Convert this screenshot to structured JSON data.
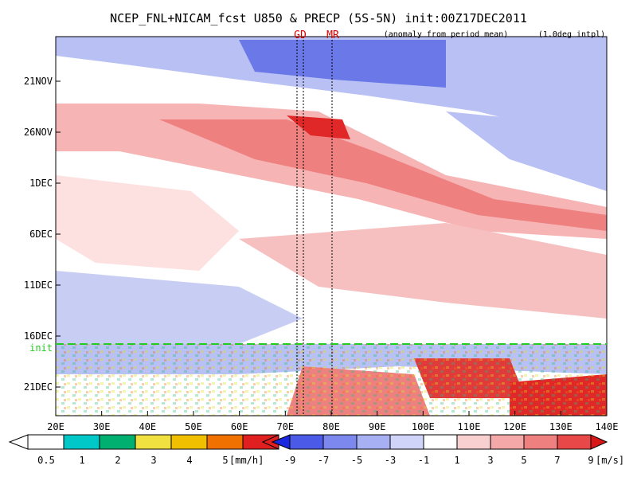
{
  "header": {
    "title": "NCEP_FNL+NICAM_fcst U850 & PRECP (5S-5N) init:00Z17DEC2011",
    "note_left": "(anomaly from period mean)",
    "note_right": "(1.0deg intpl)"
  },
  "markers": [
    "GD",
    "MR"
  ],
  "init_label": "init",
  "x_axis": [
    "20E",
    "30E",
    "40E",
    "50E",
    "60E",
    "70E",
    "80E",
    "90E",
    "100E",
    "110E",
    "120E",
    "130E",
    "140E"
  ],
  "y_axis": [
    "21NOV",
    "26NOV",
    "1DEC",
    "6DEC",
    "11DEC",
    "16DEC",
    "21DEC"
  ],
  "precip_scale": {
    "ticks": [
      0.5,
      1,
      2,
      3,
      4,
      5
    ],
    "unit": "[mm/h]"
  },
  "wind_scale": {
    "ticks": [
      -9,
      -7,
      -5,
      -3,
      -1,
      1,
      3,
      5,
      7,
      9
    ],
    "unit": "[m/s]"
  }
}
